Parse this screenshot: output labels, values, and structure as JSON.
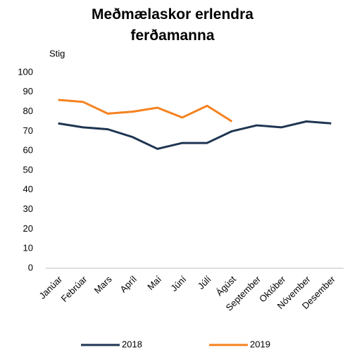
{
  "chart_data": {
    "type": "line",
    "title": "Meðmælaskor erlendra ferðamanna",
    "y_label": "Stig",
    "categories": [
      "Janúar",
      "Febrúar",
      "Mars",
      "Apríl",
      "Maí",
      "Júní",
      "Júlí",
      "Ágúst",
      "September",
      "Október",
      "Nóvember",
      "Desember"
    ],
    "series": [
      {
        "name": "2018",
        "color": "#1f3552",
        "values": [
          74,
          72,
          71,
          67,
          61,
          64,
          64,
          70,
          73,
          72,
          75,
          74
        ]
      },
      {
        "name": "2019",
        "color": "#f58220",
        "values": [
          86,
          85,
          79,
          80,
          82,
          77,
          83,
          75,
          null,
          null,
          null,
          null
        ]
      }
    ],
    "ylim": [
      0,
      100
    ],
    "yticks": [
      0,
      10,
      20,
      30,
      40,
      50,
      60,
      70,
      80,
      90,
      100
    ],
    "grid": false,
    "legend": "bottom"
  }
}
